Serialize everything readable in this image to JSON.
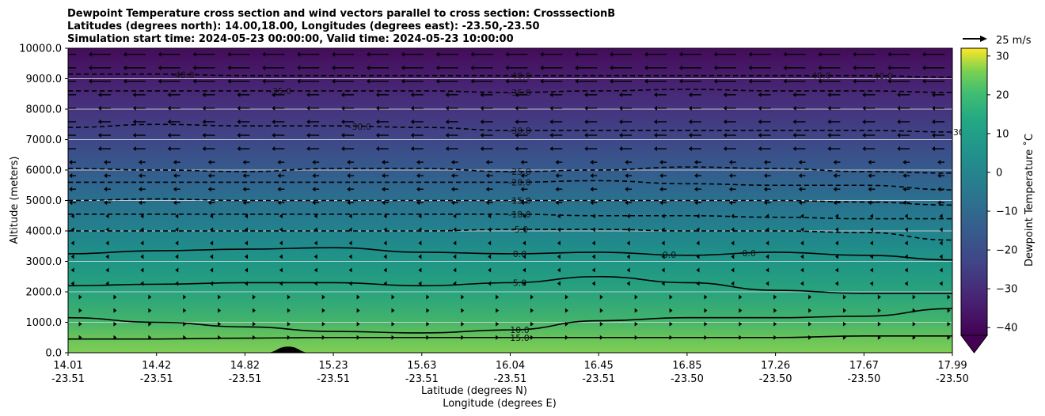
{
  "chart_data": {
    "type": "filled-contour cross section with wind vectors",
    "title_lines": [
      "Dewpoint Temperature cross section and wind vectors parallel to cross section: CrosssectionB",
      "Latitudes (degrees north): 14.00,18.00, Longitudes (degrees east): -23.50,-23.50",
      "Simulation start time: 2024-05-23 00:00:00, Valid time: 2024-05-23 10:00:00"
    ],
    "ylabel": "Altitude (meters)",
    "xlabel_lines": [
      "Latitude (degrees N)",
      "Longitude (degrees E)"
    ],
    "ylim": [
      0,
      10000
    ],
    "y_ticks": [
      0,
      1000,
      2000,
      3000,
      4000,
      5000,
      6000,
      7000,
      8000,
      9000,
      10000
    ],
    "y_tick_labels": [
      "0.0",
      "1000.0",
      "2000.0",
      "3000.0",
      "4000.0",
      "5000.0",
      "6000.0",
      "7000.0",
      "8000.0",
      "9000.0",
      "10000.0"
    ],
    "x_ticks": [
      {
        "lat": "14.01",
        "lon": "-23.51"
      },
      {
        "lat": "14.42",
        "lon": "-23.51"
      },
      {
        "lat": "14.82",
        "lon": "-23.51"
      },
      {
        "lat": "15.23",
        "lon": "-23.51"
      },
      {
        "lat": "15.63",
        "lon": "-23.51"
      },
      {
        "lat": "16.04",
        "lon": "-23.51"
      },
      {
        "lat": "16.45",
        "lon": "-23.51"
      },
      {
        "lat": "16.85",
        "lon": "-23.50"
      },
      {
        "lat": "17.26",
        "lon": "-23.50"
      },
      {
        "lat": "17.67",
        "lon": "-23.50"
      },
      {
        "lat": "17.99",
        "lon": "-23.50"
      }
    ],
    "grid": "horizontal",
    "colorbar": {
      "label": "Dewpoint Temperature $^\\circ$C",
      "label_text": "Dewpoint Temperature ˚C",
      "range": [
        -42,
        32
      ],
      "ticks": [
        -40,
        -30,
        -20,
        -10,
        0,
        10,
        20,
        30
      ],
      "tick_labels": [
        "−40",
        "−30",
        "−20",
        "−10",
        "0",
        "10",
        "20",
        "30"
      ],
      "colormap": "viridis",
      "extend": "min"
    },
    "wind_key": {
      "label": "25 m/s",
      "speed": 25
    },
    "contour_labels": [
      "-40.0",
      "-35.0",
      "-30.0",
      "-25.0",
      "-20.0",
      "-15.0",
      "-10.0",
      "-5.0",
      "0.0",
      "5.0",
      "10.0",
      "15.0",
      "0.0",
      "0.0",
      "-35.0",
      "-40.0",
      "-30.0",
      "-40.0",
      "-40.0",
      "-30.0"
    ],
    "contour_levels": [
      {
        "level": -40,
        "heights_m": [
          9150,
          9150,
          9100,
          9100,
          9100,
          9100,
          9100,
          9100,
          9100,
          9100,
          9050
        ]
      },
      {
        "level": -35,
        "heights_m": [
          8600,
          8600,
          8600,
          8600,
          8600,
          8550,
          8600,
          8650,
          8600,
          8600,
          8550
        ]
      },
      {
        "level": -30,
        "heights_m": [
          7400,
          7500,
          7450,
          7450,
          7400,
          7300,
          7300,
          7300,
          7300,
          7300,
          7250
        ]
      },
      {
        "level": -25,
        "heights_m": [
          6050,
          6000,
          5950,
          6050,
          6050,
          5950,
          6000,
          6100,
          6050,
          5950,
          5900
        ]
      },
      {
        "level": -20,
        "heights_m": [
          5600,
          5600,
          5600,
          5600,
          5600,
          5600,
          5650,
          5550,
          5500,
          5500,
          5350
        ]
      },
      {
        "level": -15,
        "heights_m": [
          5000,
          5050,
          5000,
          5000,
          5000,
          5000,
          5000,
          5000,
          5000,
          4950,
          4850
        ]
      },
      {
        "level": -10,
        "heights_m": [
          4550,
          4550,
          4550,
          4550,
          4550,
          4550,
          4500,
          4500,
          4450,
          4400,
          4400
        ]
      },
      {
        "level": -5,
        "heights_m": [
          4000,
          4000,
          4000,
          4000,
          4000,
          4050,
          4050,
          4000,
          4000,
          3950,
          3700
        ]
      },
      {
        "level": 0,
        "heights_m": [
          3250,
          3350,
          3400,
          3450,
          3300,
          3250,
          3300,
          3200,
          3300,
          3200,
          3050
        ]
      },
      {
        "level": 5,
        "heights_m": [
          2200,
          2250,
          2300,
          2300,
          2200,
          2300,
          2500,
          2300,
          2050,
          1950,
          1950
        ]
      },
      {
        "level": 10,
        "heights_m": [
          1150,
          1000,
          850,
          700,
          650,
          750,
          1050,
          1150,
          1150,
          1200,
          1450
        ]
      },
      {
        "level": 15,
        "heights_m": [
          450,
          450,
          480,
          500,
          500,
          500,
          500,
          500,
          500,
          550,
          550
        ]
      }
    ],
    "terrain": {
      "peak_lat": 15.0,
      "peak_height_m": 200
    }
  }
}
